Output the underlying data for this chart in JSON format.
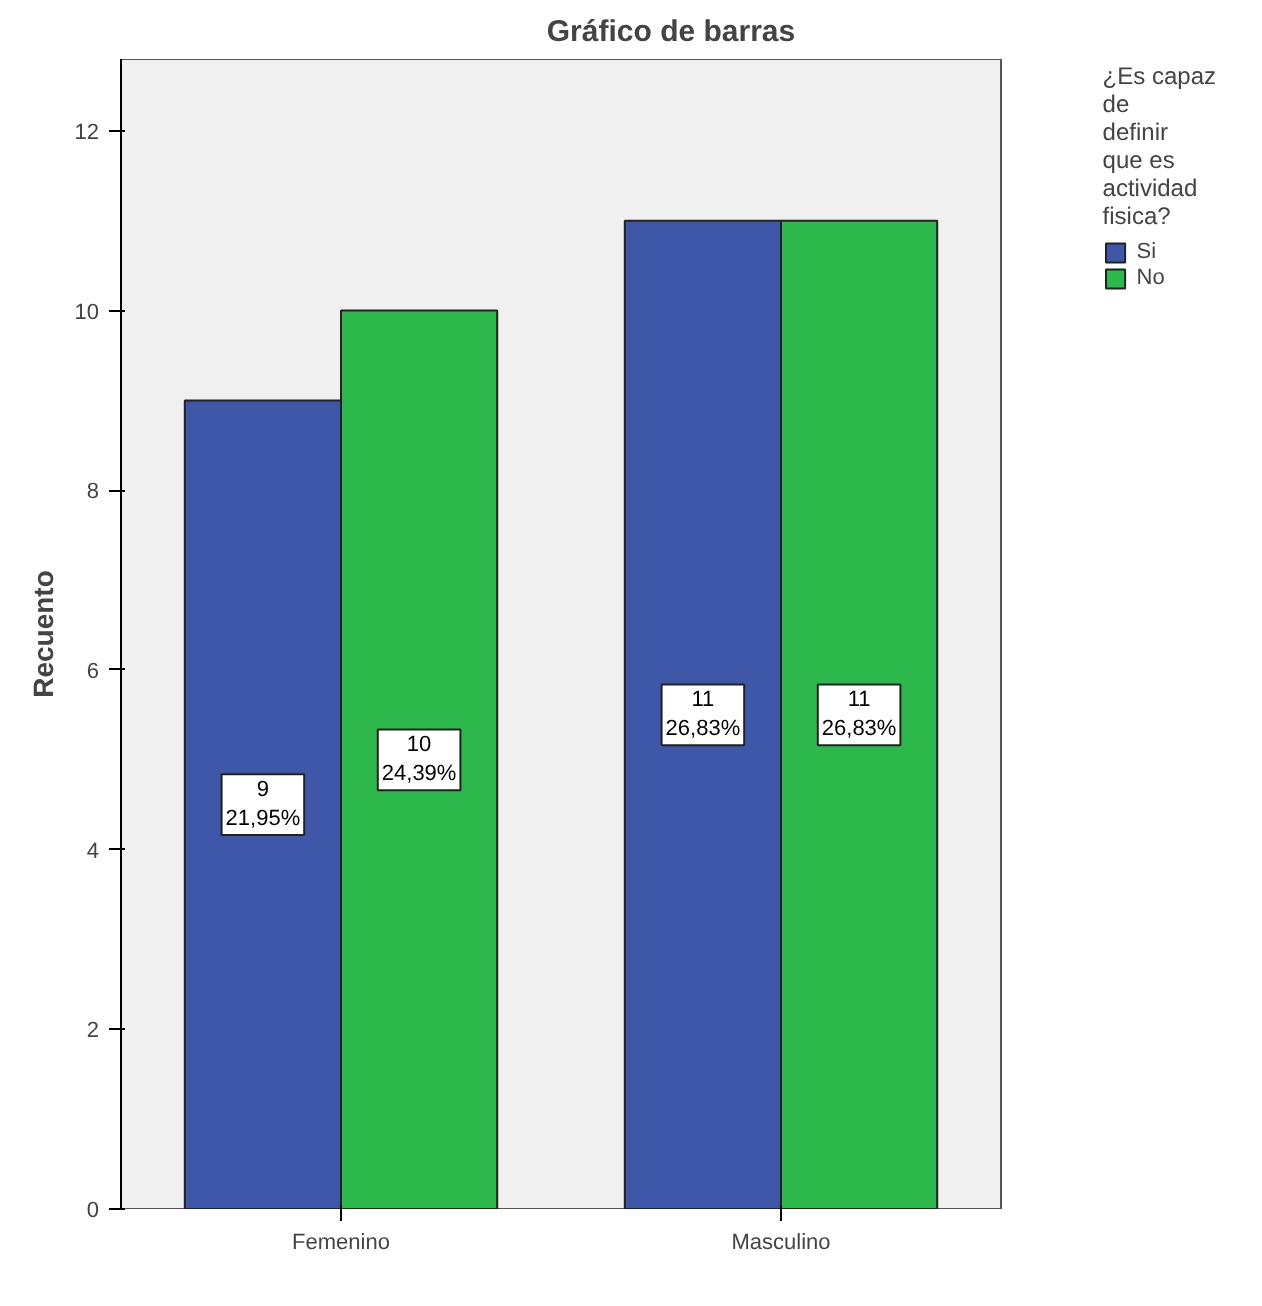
{
  "chart_data": {
    "type": "bar",
    "title": "Gráfico de barras",
    "ylabel": "Recuento",
    "legend_title": "¿Es capaz de definir que es actividad fisica?",
    "categories": [
      "Femenino",
      "Masculino"
    ],
    "series": [
      {
        "name": "Si",
        "color": "#3f57a9",
        "values": [
          9,
          11
        ],
        "value_labels": [
          "9\n21,95%",
          "11\n26,83%"
        ]
      },
      {
        "name": "No",
        "color": "#2db84b",
        "values": [
          10,
          11
        ],
        "value_labels": [
          "10\n24,39%",
          "11\n26,83%"
        ]
      }
    ],
    "ylim": [
      0,
      12.8
    ],
    "yticks": [
      0,
      2,
      4,
      6,
      8,
      10,
      12
    ],
    "grid": false,
    "legend": "right"
  }
}
